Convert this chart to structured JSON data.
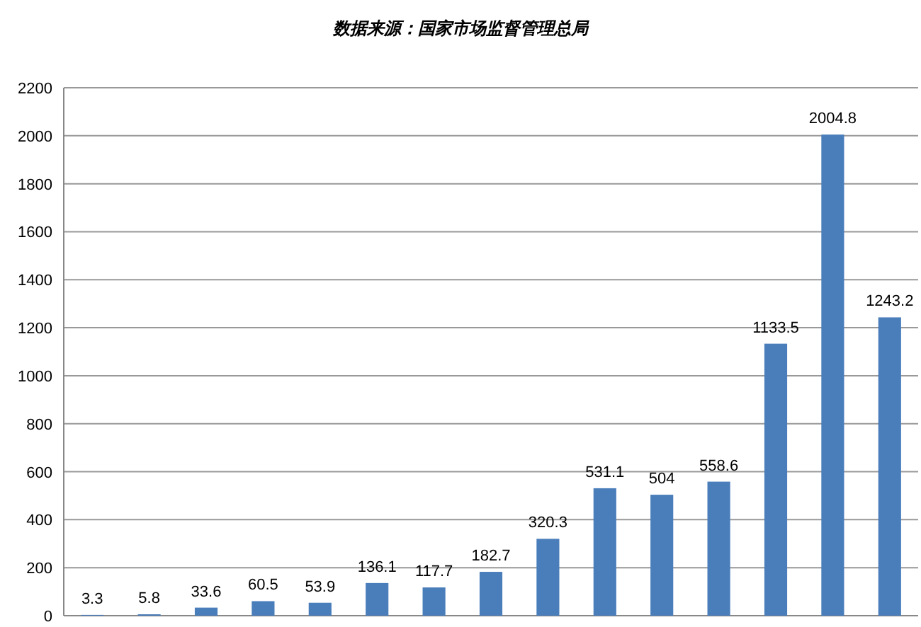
{
  "chart_data": {
    "type": "bar",
    "subtitle": "数据来源：国家市场监督管理总局",
    "categories": [
      null,
      null,
      null,
      null,
      null,
      null,
      null,
      null,
      null,
      null,
      null,
      null,
      null,
      null,
      null
    ],
    "values": [
      3.3,
      5.8,
      33.6,
      60.5,
      53.9,
      136.1,
      117.7,
      182.7,
      320.3,
      531.1,
      504,
      558.6,
      1133.5,
      2004.8,
      1243.2
    ],
    "color": "#4a7ebb",
    "ylim": [
      0,
      2200
    ],
    "yticks": [
      0,
      200,
      400,
      600,
      800,
      1000,
      1200,
      1400,
      1600,
      1800,
      2000,
      2200
    ],
    "grid": "y",
    "data_labels": true
  }
}
